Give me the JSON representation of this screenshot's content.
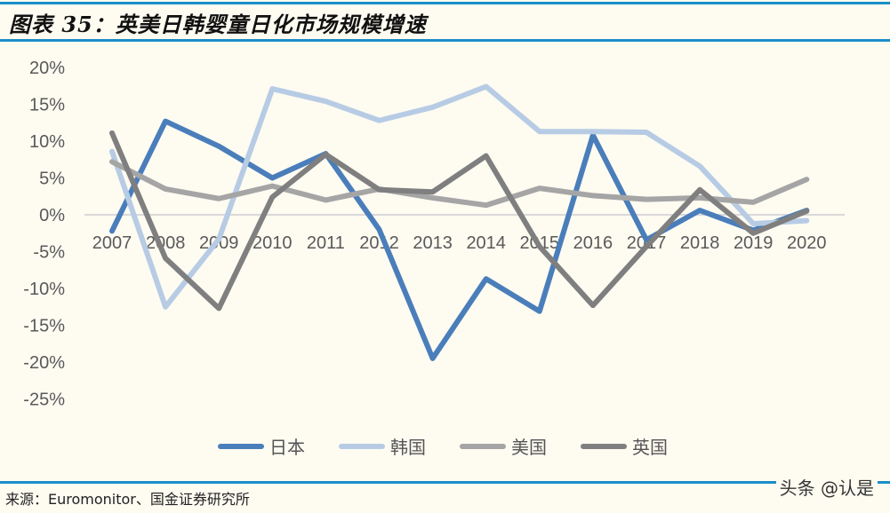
{
  "header": {
    "title": "图表 35：英美日韩婴童日化市场规模增速"
  },
  "footer": {
    "source": "来源：Euromonitor、国金证券研究所",
    "watermark": "头条 @认是"
  },
  "legend": [
    {
      "label": "日本",
      "color": "#4a7ebb"
    },
    {
      "label": "韩国",
      "color": "#b7cce4"
    },
    {
      "label": "美国",
      "color": "#a5a5a5"
    },
    {
      "label": "英国",
      "color": "#7f7f7f"
    }
  ],
  "chart_data": {
    "type": "line",
    "title": "英美日韩婴童日化市场规模增速",
    "xlabel": "",
    "ylabel": "",
    "x": [
      "2007",
      "2008",
      "2009",
      "2010",
      "2011",
      "2012",
      "2013",
      "2014",
      "2015",
      "2016",
      "2017",
      "2018",
      "2019",
      "2020"
    ],
    "ylim": [
      -0.25,
      0.2
    ],
    "yticks": [
      "20%",
      "15%",
      "10%",
      "5%",
      "0%",
      "-5%",
      "-10%",
      "-15%",
      "-20%",
      "-25%"
    ],
    "grid": false,
    "legend_position": "bottom",
    "series": [
      {
        "name": "日本",
        "color": "#4a7ebb",
        "values": [
          -0.022,
          0.127,
          0.093,
          0.05,
          0.083,
          -0.02,
          -0.195,
          -0.087,
          -0.131,
          0.108,
          -0.034,
          0.006,
          -0.021,
          0.006
        ]
      },
      {
        "name": "韩国",
        "color": "#b7cce4",
        "values": [
          0.086,
          -0.125,
          -0.033,
          0.171,
          0.154,
          0.128,
          0.146,
          0.174,
          0.113,
          0.113,
          0.112,
          0.066,
          -0.012,
          -0.008
        ]
      },
      {
        "name": "美国",
        "color": "#a5a5a5",
        "values": [
          0.072,
          0.035,
          0.022,
          0.039,
          0.02,
          0.035,
          0.023,
          0.013,
          0.036,
          0.026,
          0.021,
          0.023,
          0.017,
          0.048
        ]
      },
      {
        "name": "英国",
        "color": "#7f7f7f",
        "values": [
          0.111,
          -0.059,
          -0.127,
          0.024,
          0.082,
          0.034,
          0.031,
          0.08,
          -0.043,
          -0.123,
          -0.043,
          0.034,
          -0.025,
          0.005
        ]
      }
    ]
  }
}
